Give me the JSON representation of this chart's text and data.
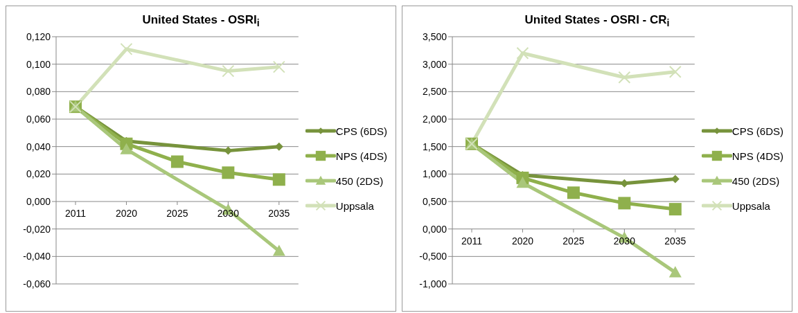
{
  "chart_data": [
    {
      "type": "line",
      "title": "United States - OSRI$_{i}$",
      "categories": [
        "2011",
        "2020",
        "2025",
        "2030",
        "2035"
      ],
      "series": [
        {
          "name": "CPS (6DS)",
          "color": "#77933c",
          "marker": "diamond",
          "values": [
            0.069,
            0.044,
            null,
            0.037,
            0.04
          ]
        },
        {
          "name": "NPS (4DS)",
          "color": "#8fb04c",
          "marker": "square",
          "values": [
            0.069,
            0.042,
            0.029,
            0.021,
            0.016
          ]
        },
        {
          "name": "450 (2DS)",
          "color": "#a9c77a",
          "marker": "triangle",
          "values": [
            0.069,
            0.038,
            null,
            -0.006,
            -0.036
          ]
        },
        {
          "name": "Uppsala",
          "color": "#d2e1b8",
          "marker": "cross",
          "values": [
            0.069,
            0.111,
            null,
            0.095,
            0.098
          ]
        }
      ],
      "ylim": [
        -0.06,
        0.12
      ],
      "yticks": [
        {
          "value": -0.06,
          "label": "-0,060"
        },
        {
          "value": -0.04,
          "label": "-0,040"
        },
        {
          "value": -0.02,
          "label": "-0,020"
        },
        {
          "value": 0,
          "label": "0,000"
        },
        {
          "value": 0.02,
          "label": "0,020"
        },
        {
          "value": 0.04,
          "label": "0,040"
        },
        {
          "value": 0.06,
          "label": "0,060"
        },
        {
          "value": 0.08,
          "label": "0,080"
        },
        {
          "value": 0.1,
          "label": "0,100"
        },
        {
          "value": 0.12,
          "label": "0,120"
        }
      ],
      "grid": "y",
      "legend": "right"
    },
    {
      "type": "line",
      "title": "United States - OSRI - CR$_{i}$",
      "categories": [
        "2011",
        "2020",
        "2025",
        "2030",
        "2035"
      ],
      "series": [
        {
          "name": "CPS (6DS)",
          "color": "#77933c",
          "marker": "diamond",
          "values": [
            1.55,
            0.98,
            null,
            0.83,
            0.91
          ]
        },
        {
          "name": "NPS (4DS)",
          "color": "#8fb04c",
          "marker": "square",
          "values": [
            1.55,
            0.93,
            0.66,
            0.47,
            0.36
          ]
        },
        {
          "name": "450 (2DS)",
          "color": "#a9c77a",
          "marker": "triangle",
          "values": [
            1.55,
            0.84,
            null,
            -0.16,
            -0.79
          ]
        },
        {
          "name": "Uppsala",
          "color": "#d2e1b8",
          "marker": "cross",
          "values": [
            1.55,
            3.2,
            null,
            2.76,
            2.86
          ]
        }
      ],
      "ylim": [
        -1,
        3.5
      ],
      "yticks": [
        {
          "value": -1,
          "label": "-1,000"
        },
        {
          "value": -0.5,
          "label": "-0,500"
        },
        {
          "value": 0,
          "label": "0,000"
        },
        {
          "value": 0.5,
          "label": "0,500"
        },
        {
          "value": 1,
          "label": "1,000"
        },
        {
          "value": 1.5,
          "label": "1,500"
        },
        {
          "value": 2,
          "label": "2,000"
        },
        {
          "value": 2.5,
          "label": "2,500"
        },
        {
          "value": 3,
          "label": "3,000"
        },
        {
          "value": 3.5,
          "label": "3,500"
        }
      ],
      "grid": "y",
      "legend": "right"
    }
  ]
}
